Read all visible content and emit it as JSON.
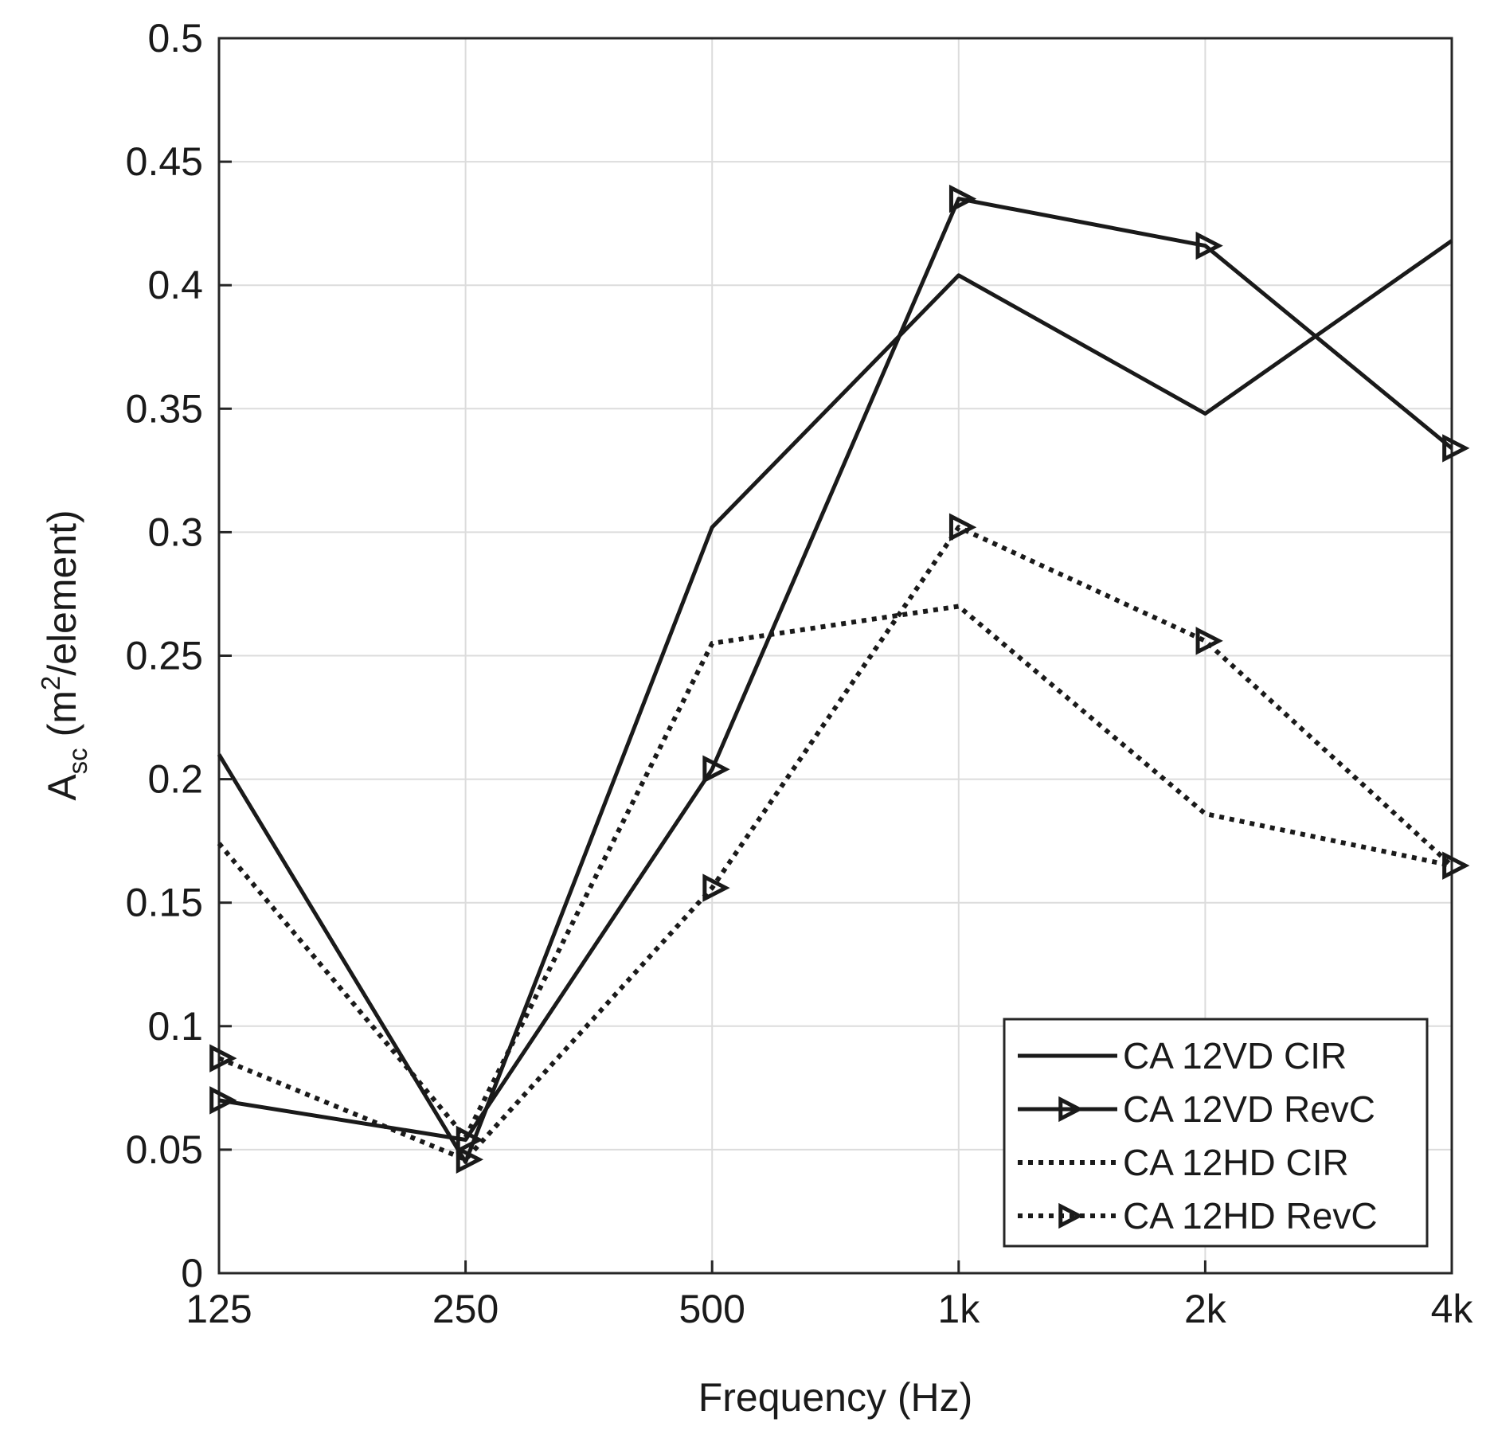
{
  "chart_data": {
    "type": "line",
    "title": "",
    "xlabel": "Frequency (Hz)",
    "ylabel": {
      "main": "A",
      "sub": "sc",
      "unit_open": " (m",
      "sup": "2",
      "unit_close": "/element)"
    },
    "categories": [
      "125",
      "250",
      "500",
      "1k",
      "2k",
      "4k"
    ],
    "ylim": [
      0,
      0.5
    ],
    "yticks": [
      "0",
      "0.05",
      "0.1",
      "0.15",
      "0.2",
      "0.25",
      "0.3",
      "0.35",
      "0.4",
      "0.45",
      "0.5"
    ],
    "grid": true,
    "legend_position": "bottom-right",
    "series": [
      {
        "name": "CA 12VD CIR",
        "style": "solid",
        "marker": "none",
        "values": [
          0.21,
          0.045,
          0.302,
          0.404,
          0.348,
          0.418
        ]
      },
      {
        "name": "CA 12VD RevC",
        "style": "solid",
        "marker": "triangle-right",
        "values": [
          0.07,
          0.054,
          0.204,
          0.435,
          0.416,
          0.334
        ]
      },
      {
        "name": "CA 12HD CIR",
        "style": "dotted",
        "marker": "none",
        "values": [
          0.174,
          0.055,
          0.255,
          0.27,
          0.186,
          0.165
        ]
      },
      {
        "name": "CA 12HD RevC",
        "style": "dotted",
        "marker": "triangle-right",
        "values": [
          0.087,
          0.046,
          0.156,
          0.302,
          0.256,
          0.165
        ]
      }
    ]
  },
  "colors": {
    "line": "#1a1a1a",
    "grid": "#dcdcdc",
    "background": "#ffffff"
  }
}
